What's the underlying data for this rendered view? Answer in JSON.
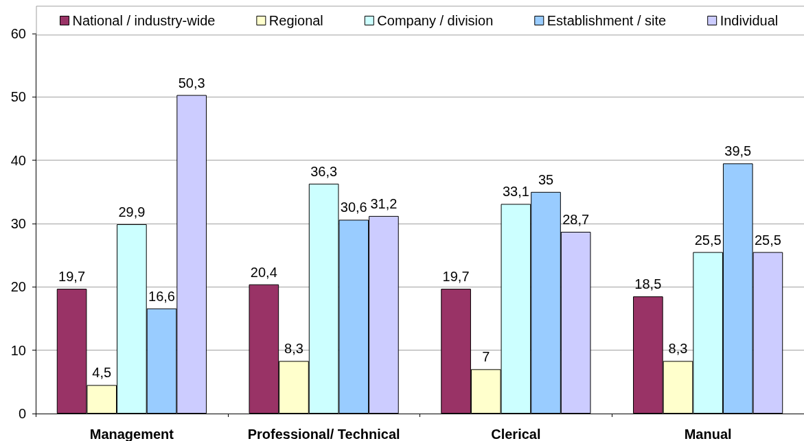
{
  "chart_data": {
    "type": "bar",
    "categories": [
      "Management",
      "Professional/ Technical",
      "Clerical",
      "Manual"
    ],
    "series": [
      {
        "name": "National / industry-wide",
        "color": "#993366",
        "values": [
          19.7,
          20.4,
          19.7,
          18.5
        ],
        "value_labels": [
          "19,7",
          "20,4",
          "19,7",
          "18,5"
        ]
      },
      {
        "name": "Regional",
        "color": "#ffffcc",
        "values": [
          4.5,
          8.3,
          7,
          8.3
        ],
        "value_labels": [
          "4,5",
          "8,3",
          "7",
          "8,3"
        ]
      },
      {
        "name": "Company / division",
        "color": "#ccffff",
        "values": [
          29.9,
          36.3,
          33.1,
          25.5
        ],
        "value_labels": [
          "29,9",
          "36,3",
          "33,1",
          "25,5"
        ]
      },
      {
        "name": "Establishment / site",
        "color": "#99ccff",
        "values": [
          16.6,
          30.6,
          35,
          39.5
        ],
        "value_labels": [
          "16,6",
          "30,6",
          "35",
          "39,5"
        ]
      },
      {
        "name": "Individual",
        "color": "#ccccff",
        "values": [
          50.3,
          31.2,
          28.7,
          25.5
        ],
        "value_labels": [
          "50,3",
          "31,2",
          "28,7",
          "25,5"
        ]
      }
    ],
    "ylim": [
      0,
      60
    ],
    "yticks": [
      0,
      10,
      20,
      30,
      40,
      50,
      60
    ],
    "grid": "y",
    "legend": "top"
  }
}
